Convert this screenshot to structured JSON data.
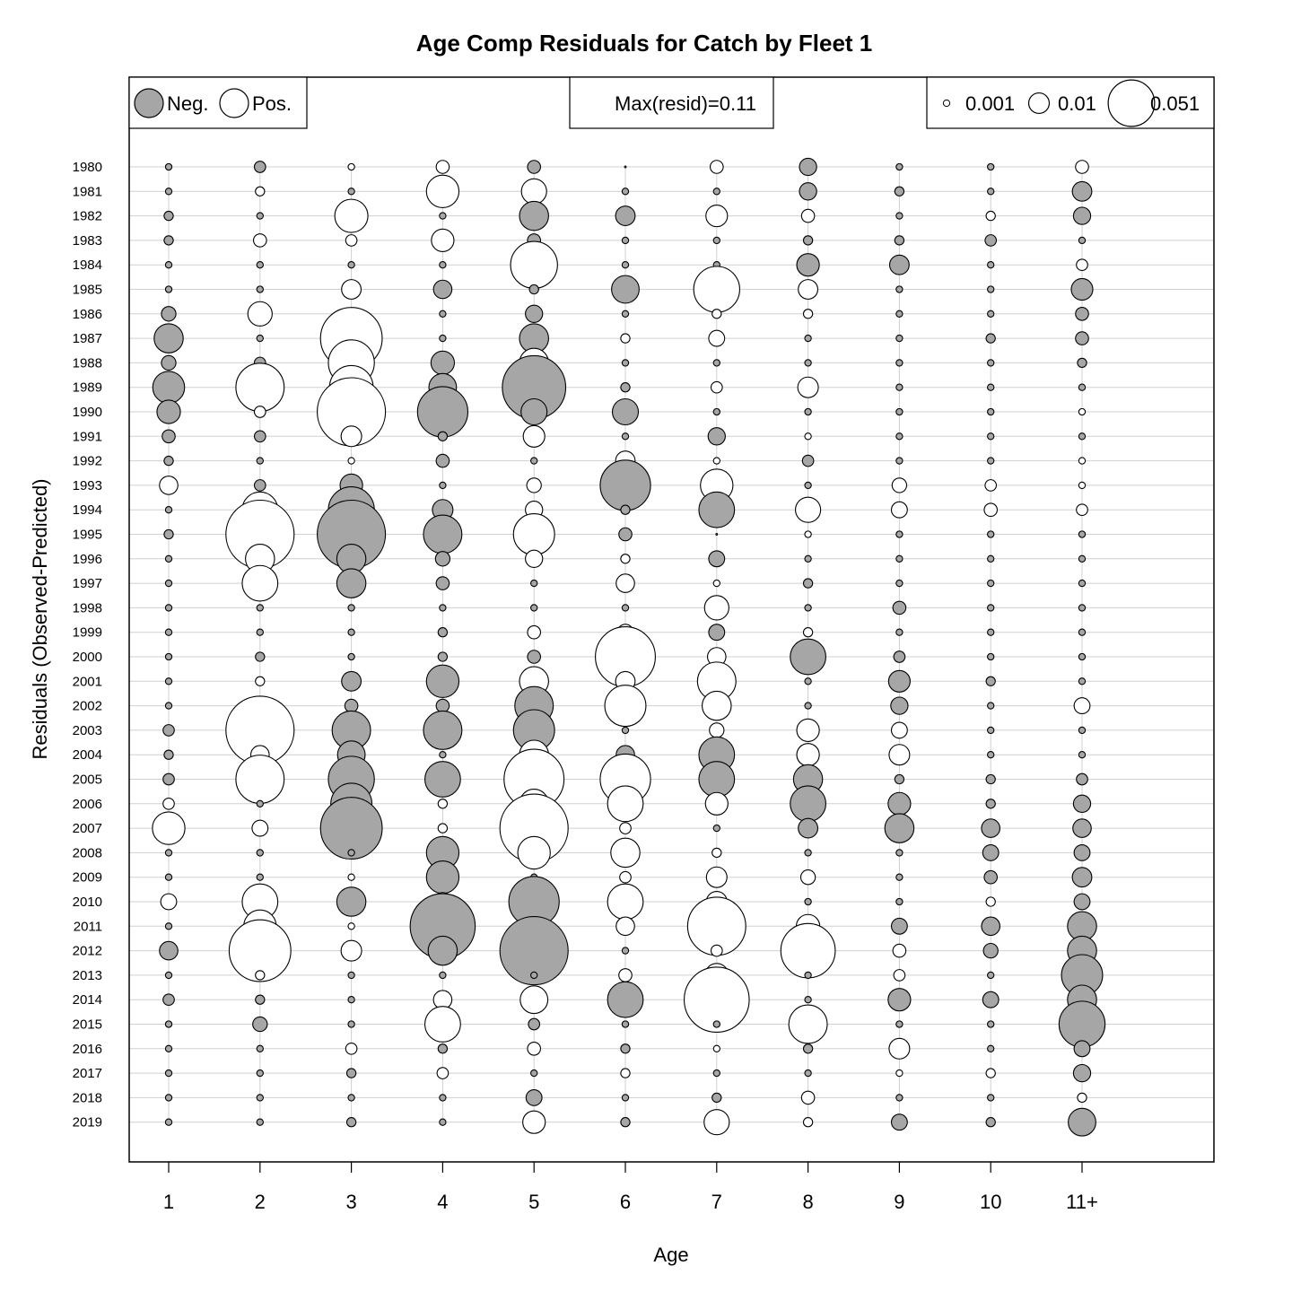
{
  "chart_data": {
    "type": "bubble",
    "title": "Age Comp Residuals for Catch by Fleet 1",
    "xlabel": "Age",
    "ylabel": "Residuals (Observed-Predicted)",
    "ages": [
      "1",
      "2",
      "3",
      "4",
      "5",
      "6",
      "7",
      "8",
      "9",
      "10",
      "11+"
    ],
    "years": [
      1980,
      1981,
      1982,
      1983,
      1984,
      1985,
      1986,
      1987,
      1988,
      1989,
      1990,
      1991,
      1992,
      1993,
      1994,
      1995,
      1996,
      1997,
      1998,
      1999,
      2000,
      2001,
      2002,
      2003,
      2004,
      2005,
      2006,
      2007,
      2008,
      2009,
      2010,
      2011,
      2012,
      2013,
      2014,
      2015,
      2016,
      2017,
      2018,
      2019
    ],
    "colors": {
      "negative": "#a6a6a6",
      "positive": "#ffffff",
      "stroke": "#000000",
      "grid": "#d0d0d0"
    },
    "legend_sign": {
      "neg_label": "Neg.",
      "pos_label": "Pos.",
      "placement": "top-left"
    },
    "max_resid_label": "Max(resid)=0.11",
    "legend_size": [
      {
        "value": 0.001,
        "label": "0.001"
      },
      {
        "value": 0.01,
        "label": "0.01"
      },
      {
        "value": 0.051,
        "label": "0.051"
      }
    ],
    "max_resid": 0.11,
    "residuals": [
      [
        -0.001,
        -0.003,
        0.001,
        0.004,
        -0.004,
        0.0,
        0.004,
        -0.007,
        -0.001,
        -0.001,
        0.004
      ],
      [
        -0.001,
        0.002,
        -0.001,
        0.025,
        0.015,
        -0.001,
        -0.001,
        -0.007,
        -0.002,
        -0.001,
        -0.009
      ],
      [
        -0.002,
        -0.001,
        0.026,
        -0.001,
        -0.02,
        -0.009,
        0.011,
        0.004,
        -0.001,
        0.002,
        -0.007
      ],
      [
        -0.002,
        0.004,
        0.003,
        0.012,
        -0.004,
        -0.001,
        -0.001,
        -0.002,
        -0.002,
        -0.003,
        -0.001
      ],
      [
        -0.001,
        -0.001,
        -0.001,
        -0.001,
        0.052,
        -0.001,
        -0.001,
        -0.012,
        -0.009,
        -0.001,
        0.003
      ],
      [
        -0.001,
        -0.001,
        0.009,
        -0.008,
        -0.002,
        -0.018,
        0.05,
        0.009,
        -0.001,
        -0.001,
        -0.011
      ],
      [
        -0.005,
        0.014,
        0.001,
        -0.001,
        -0.007,
        -0.001,
        0.002,
        0.002,
        -0.001,
        -0.001,
        -0.004
      ],
      [
        -0.02,
        -0.001,
        0.09,
        -0.001,
        -0.02,
        0.002,
        0.006,
        -0.001,
        -0.001,
        -0.002,
        -0.004
      ],
      [
        -0.005,
        -0.003,
        0.05,
        -0.013,
        0.02,
        -0.001,
        -0.001,
        -0.001,
        -0.001,
        -0.001,
        -0.002
      ],
      [
        -0.024,
        0.055,
        0.045,
        -0.018,
        -0.095,
        -0.002,
        0.003,
        0.01,
        -0.001,
        -0.001,
        -0.001
      ],
      [
        -0.013,
        0.003,
        0.11,
        -0.06,
        -0.016,
        -0.016,
        -0.001,
        -0.001,
        -0.001,
        -0.001,
        0.001
      ],
      [
        -0.004,
        -0.003,
        0.01,
        -0.002,
        0.011,
        -0.001,
        -0.007,
        0.001,
        -0.001,
        -0.001,
        -0.001
      ],
      [
        -0.002,
        -0.001,
        0.001,
        -0.004,
        -0.001,
        0.009,
        0.001,
        -0.003,
        -0.001,
        -0.001,
        0.001
      ],
      [
        0.008,
        -0.003,
        -0.012,
        -0.001,
        0.005,
        -0.06,
        0.025,
        -0.001,
        0.005,
        0.003,
        0.001
      ],
      [
        -0.001,
        0.03,
        -0.05,
        -0.01,
        0.007,
        -0.002,
        -0.03,
        0.015,
        0.006,
        0.004,
        0.003
      ],
      [
        -0.002,
        0.11,
        -0.11,
        -0.035,
        0.04,
        -0.004,
        0.0,
        0.001,
        -0.001,
        -0.001,
        -0.001
      ],
      [
        -0.001,
        0.02,
        -0.02,
        -0.005,
        0.007,
        0.002,
        -0.006,
        -0.001,
        -0.001,
        -0.001,
        -0.001
      ],
      [
        -0.001,
        0.03,
        -0.02,
        -0.004,
        -0.001,
        0.008,
        0.001,
        -0.002,
        -0.001,
        -0.001,
        -0.001
      ],
      [
        -0.001,
        -0.001,
        -0.001,
        -0.001,
        -0.001,
        -0.001,
        0.014,
        -0.001,
        -0.004,
        -0.001,
        -0.001
      ],
      [
        -0.001,
        -0.001,
        -0.001,
        -0.002,
        0.004,
        0.006,
        -0.006,
        0.002,
        -0.001,
        -0.001,
        -0.001
      ],
      [
        -0.001,
        -0.002,
        -0.001,
        -0.002,
        -0.004,
        0.085,
        0.008,
        -0.03,
        -0.003,
        -0.001,
        -0.001
      ],
      [
        -0.001,
        0.002,
        -0.009,
        -0.025,
        0.02,
        0.009,
        0.035,
        -0.001,
        -0.011,
        -0.002,
        -0.001
      ],
      [
        -0.001,
        -0.002,
        -0.004,
        -0.004,
        -0.035,
        0.04,
        0.02,
        -0.001,
        -0.007,
        -0.001,
        0.006
      ],
      [
        -0.003,
        0.11,
        -0.035,
        -0.035,
        -0.04,
        -0.001,
        0.005,
        0.012,
        0.006,
        -0.001,
        -0.001
      ],
      [
        -0.002,
        0.008,
        -0.018,
        -0.001,
        0.02,
        -0.008,
        -0.03,
        0.012,
        0.01,
        -0.001,
        -0.001
      ],
      [
        -0.003,
        0.055,
        -0.05,
        -0.03,
        0.085,
        0.06,
        -0.03,
        -0.02,
        -0.002,
        -0.002,
        -0.003
      ],
      [
        0.003,
        -0.001,
        -0.04,
        0.002,
        0.02,
        0.03,
        0.012,
        -0.03,
        -0.012,
        -0.002,
        -0.007
      ],
      [
        0.025,
        0.006,
        -0.09,
        0.002,
        0.11,
        0.003,
        -0.001,
        -0.009,
        -0.02,
        -0.008,
        -0.008
      ],
      [
        -0.001,
        -0.001,
        -0.001,
        -0.025,
        0.025,
        0.02,
        0.002,
        -0.001,
        -0.001,
        -0.006,
        -0.006
      ],
      [
        -0.001,
        -0.001,
        0.001,
        -0.025,
        -0.001,
        0.003,
        0.01,
        0.005,
        -0.001,
        -0.004,
        -0.009
      ],
      [
        0.006,
        0.03,
        -0.02,
        -0.008,
        -0.06,
        0.03,
        0.01,
        -0.001,
        -0.001,
        0.002,
        -0.006
      ],
      [
        -0.001,
        0.025,
        0.001,
        -0.1,
        -0.008,
        0.008,
        0.08,
        0.013,
        -0.006,
        -0.008,
        -0.02
      ],
      [
        -0.008,
        0.09,
        0.01,
        -0.02,
        -0.11,
        -0.001,
        0.003,
        0.07,
        0.004,
        -0.005,
        -0.02
      ],
      [
        -0.001,
        0.002,
        -0.001,
        -0.001,
        -0.001,
        0.004,
        0.013,
        -0.001,
        0.003,
        -0.001,
        -0.04
      ],
      [
        -0.003,
        -0.002,
        -0.001,
        0.008,
        0.018,
        -0.03,
        0.1,
        -0.001,
        -0.012,
        -0.006,
        -0.02
      ],
      [
        -0.001,
        -0.005,
        -0.001,
        0.03,
        -0.003,
        -0.001,
        -0.001,
        0.035,
        -0.001,
        -0.001,
        -0.05
      ],
      [
        -0.001,
        -0.001,
        0.003,
        -0.002,
        0.004,
        -0.002,
        0.001,
        -0.002,
        0.01,
        -0.001,
        -0.006
      ],
      [
        -0.001,
        -0.001,
        -0.002,
        0.003,
        -0.001,
        0.002,
        -0.001,
        -0.001,
        0.001,
        0.002,
        -0.007
      ],
      [
        -0.001,
        -0.001,
        -0.001,
        -0.001,
        -0.006,
        -0.001,
        -0.002,
        0.004,
        -0.001,
        -0.001,
        0.002
      ],
      [
        -0.001,
        -0.001,
        -0.002,
        -0.001,
        0.012,
        -0.002,
        0.015,
        0.002,
        -0.006,
        -0.002,
        -0.018
      ]
    ]
  }
}
